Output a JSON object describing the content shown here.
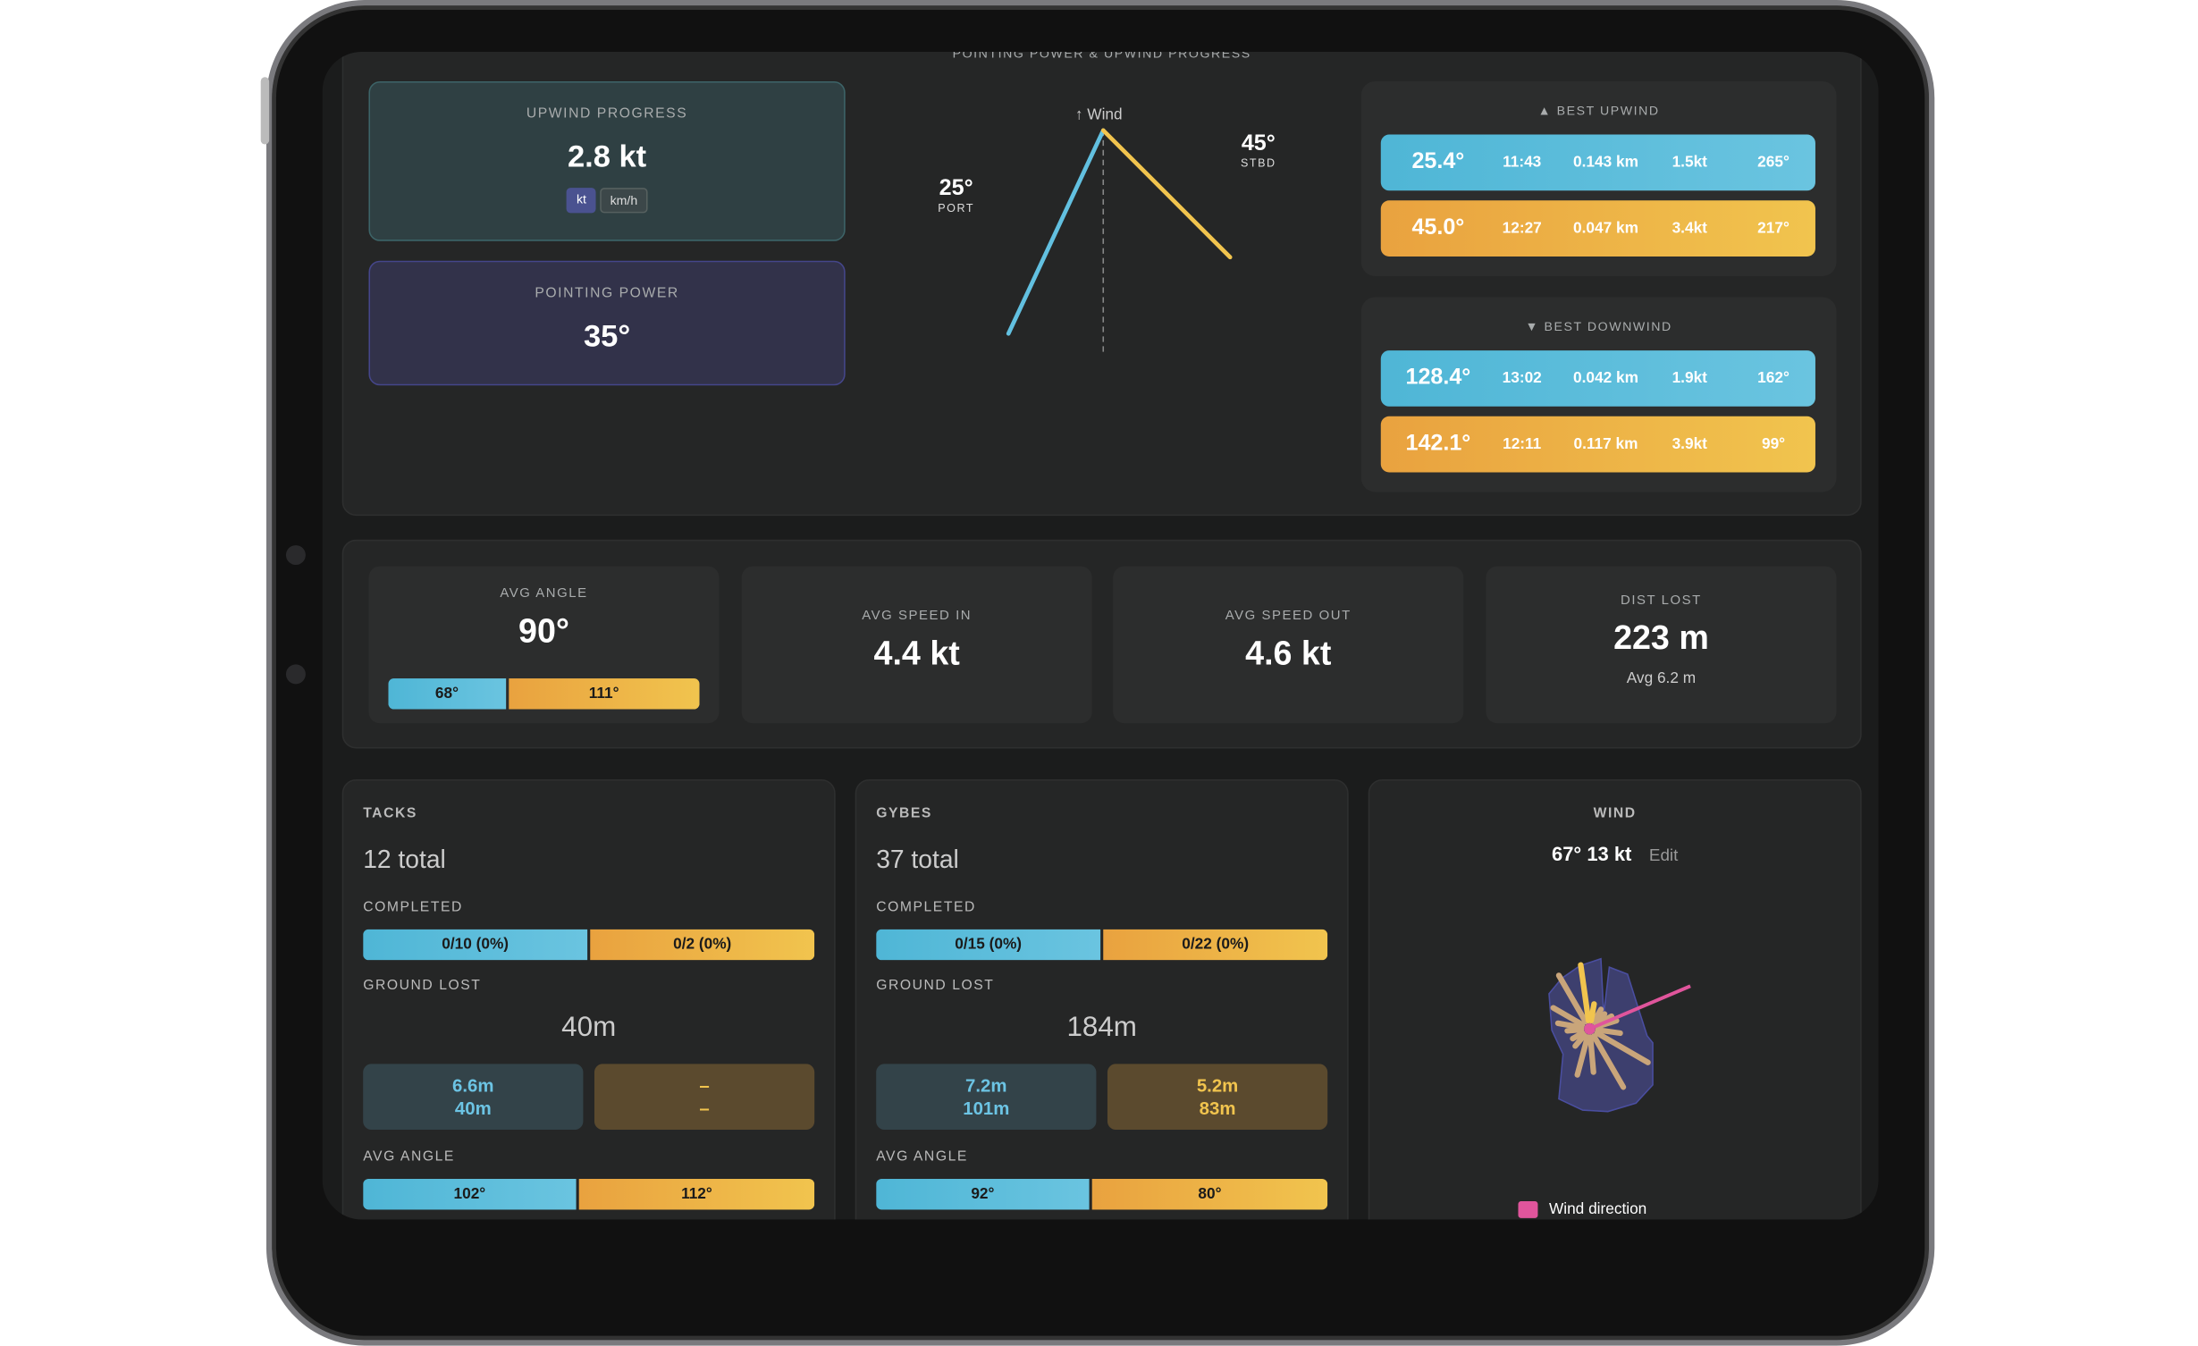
{
  "top": {
    "title": "POINTING POWER & UPWIND PROGRESS",
    "upwind": {
      "label": "UPWIND PROGRESS",
      "value": "2.8 kt",
      "units": [
        "kt",
        "km/h"
      ],
      "selected_unit": "kt"
    },
    "pointing": {
      "label": "POINTING POWER",
      "value": "35°"
    },
    "diagram": {
      "wind_label": "↑ Wind",
      "port_angle": "25°",
      "port_label": "PORT",
      "stbd_angle": "45°",
      "stbd_label": "STBD",
      "port_deg": 25,
      "stbd_deg": 45
    },
    "best_upwind": {
      "label": "▲ BEST UPWIND",
      "rows": [
        {
          "angle": "25.4°",
          "time": "11:43",
          "dist": "0.143 km",
          "speed": "1.5kt",
          "heading": "265°",
          "color": "blue"
        },
        {
          "angle": "45.0°",
          "time": "12:27",
          "dist": "0.047 km",
          "speed": "3.4kt",
          "heading": "217°",
          "color": "orange"
        }
      ]
    },
    "best_downwind": {
      "label": "▼ BEST DOWNWIND",
      "rows": [
        {
          "angle": "128.4°",
          "time": "13:02",
          "dist": "0.042 km",
          "speed": "1.9kt",
          "heading": "162°",
          "color": "blue"
        },
        {
          "angle": "142.1°",
          "time": "12:11",
          "dist": "0.117 km",
          "speed": "3.9kt",
          "heading": "99°",
          "color": "orange"
        }
      ]
    }
  },
  "stats": [
    {
      "label": "AVG ANGLE",
      "value": "90°",
      "port": "68°",
      "stbd": "111°"
    },
    {
      "label": "AVG SPEED IN",
      "value": "4.4 kt"
    },
    {
      "label": "AVG SPEED OUT",
      "value": "4.6 kt"
    },
    {
      "label": "DIST LOST",
      "value": "223 m",
      "sub": "Avg 6.2 m"
    }
  ],
  "tacks": {
    "title": "TACKS",
    "total": "12 total",
    "completed_label": "COMPLETED",
    "completed": [
      "0/10 (0%)",
      "0/2 (0%)"
    ],
    "ground_label": "GROUND LOST",
    "ground": "40m",
    "port": [
      "6.6m",
      "40m"
    ],
    "stbd": [
      "–",
      "–"
    ],
    "angle_label": "AVG ANGLE",
    "angles": [
      "102°",
      "112°"
    ]
  },
  "gybes": {
    "title": "GYBES",
    "total": "37 total",
    "completed_label": "COMPLETED",
    "completed": [
      "0/15 (0%)",
      "0/22 (0%)"
    ],
    "ground_label": "GROUND LOST",
    "ground": "184m",
    "port": [
      "7.2m",
      "101m"
    ],
    "stbd": [
      "5.2m",
      "83m"
    ],
    "angle_label": "AVG ANGLE",
    "angles": [
      "92°",
      "80°"
    ]
  },
  "wind": {
    "title": "WIND",
    "value": "67° 13 kt",
    "edit": "Edit",
    "legend": "Wind direction",
    "direction_deg": 67,
    "colors": {
      "arrow": "#e0559c",
      "rose": "#3d3f6e",
      "spokes": "#c9a57a"
    }
  },
  "colors": {
    "port": "#4fb6d6",
    "stbd": "#f1c44e"
  }
}
